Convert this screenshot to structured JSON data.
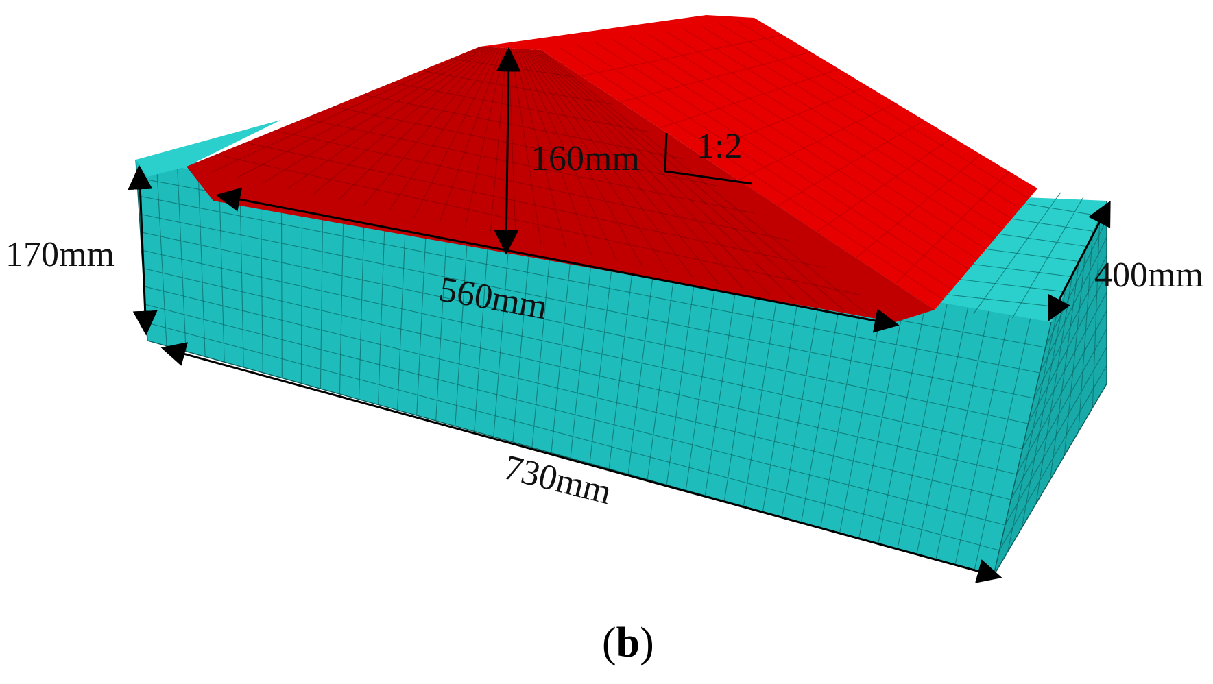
{
  "figure": {
    "panel_label": "b",
    "colors": {
      "foundation_front": "#1fbcbc",
      "foundation_right": "#1cb2b0",
      "foundation_top": "#2bd0cd",
      "embankment_dark": "#c00000",
      "embankment_light": "#e60000",
      "mesh_line": "#0b6b68",
      "dimension_line": "#000000"
    },
    "dimensions": {
      "foundation_height": "170mm",
      "embankment_height": "160mm",
      "embankment_base_width": "560mm",
      "foundation_length": "730mm",
      "foundation_depth": "400mm",
      "slope_ratio": "1:2"
    }
  }
}
